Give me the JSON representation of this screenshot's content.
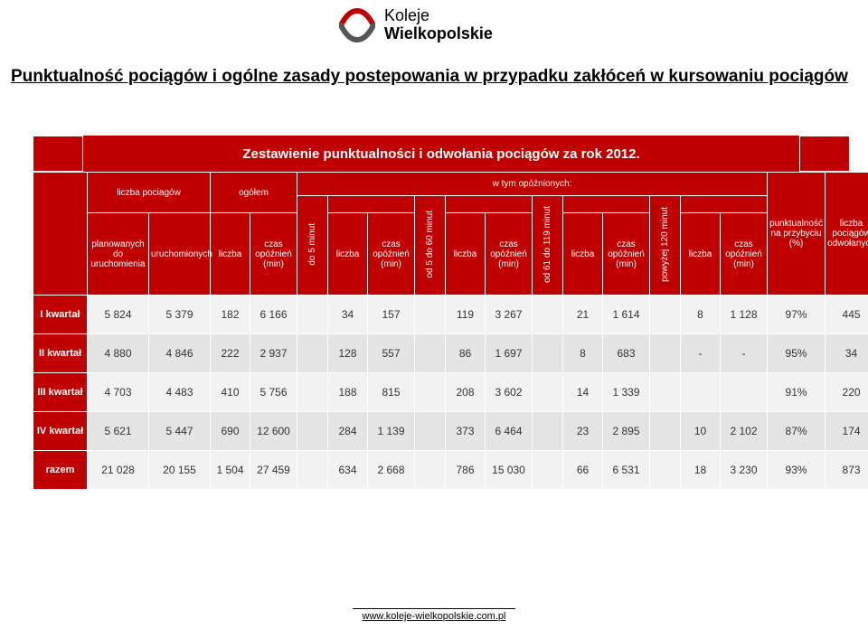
{
  "logo": {
    "line1": "Koleje",
    "line2": "Wielkopolskie",
    "colors": {
      "red": "#c00000",
      "grey": "#555555"
    }
  },
  "title": "Punktualność pociągów i ogólne zasady postepowania w przypadku zakłóceń w kursowaniu pociągów",
  "caption": "Zestawienie punktualności i odwołania pociągów za rok 2012.",
  "header": {
    "delayed_label": "w tym opóźnionych:",
    "trains_label": "liczba pociagów",
    "total_label": "ogółem",
    "planned": "planowanych do uruchomienia",
    "launched": "uruchomionych",
    "count": "liczba",
    "delay_time": "czas opóźnień (min)",
    "bucket_5": "do 5 minut",
    "bucket_5_60": "od 5 do 60 minut",
    "bucket_61_119": "od 61 do 119 minut",
    "bucket_120": "powyżej 120 minut",
    "punctuality": "punktualność na przybyciu (%)",
    "cancelled": "liczba pociągów odwołanych"
  },
  "rows": [
    {
      "label": "I kwartał",
      "planned": "5 824",
      "launched": "5 379",
      "tot_n": "182",
      "tot_t": "6 166",
      "b5_n": "34",
      "b5_t": "157",
      "b60_n": "119",
      "b60_t": "3 267",
      "b119_n": "21",
      "b119_t": "1 614",
      "b120_n": "8",
      "b120_t": "1 128",
      "pct": "97%",
      "canc": "445"
    },
    {
      "label": "II kwartał",
      "planned": "4 880",
      "launched": "4 846",
      "tot_n": "222",
      "tot_t": "2 937",
      "b5_n": "128",
      "b5_t": "557",
      "b60_n": "86",
      "b60_t": "1 697",
      "b119_n": "8",
      "b119_t": "683",
      "b120_n": "-",
      "b120_t": "-",
      "pct": "95%",
      "canc": "34"
    },
    {
      "label": "III kwartał",
      "planned": "4 703",
      "launched": "4 483",
      "tot_n": "410",
      "tot_t": "5 756",
      "b5_n": "188",
      "b5_t": "815",
      "b60_n": "208",
      "b60_t": "3 602",
      "b119_n": "14",
      "b119_t": "1 339",
      "b120_n": "",
      "b120_t": "",
      "pct": "91%",
      "canc": "220"
    },
    {
      "label": "IV kwartał",
      "planned": "5 621",
      "launched": "5 447",
      "tot_n": "690",
      "tot_t": "12 600",
      "b5_n": "284",
      "b5_t": "1 139",
      "b60_n": "373",
      "b60_t": "6 464",
      "b119_n": "23",
      "b119_t": "2 895",
      "b120_n": "10",
      "b120_t": "2 102",
      "pct": "87%",
      "canc": "174"
    },
    {
      "label": "razem",
      "planned": "21 028",
      "launched": "20 155",
      "tot_n": "1 504",
      "tot_t": "27 459",
      "b5_n": "634",
      "b5_t": "2 668",
      "b60_n": "786",
      "b60_t": "15 030",
      "b119_n": "66",
      "b119_t": "6 531",
      "b120_n": "18",
      "b120_t": "3 230",
      "pct": "93%",
      "canc": "873"
    }
  ],
  "footer": "www.koleje-wielkopolskie.com.pl",
  "colors": {
    "header_bg": "#c00000",
    "row_odd": "#f2f2f2",
    "row_even": "#e4e4e4"
  }
}
